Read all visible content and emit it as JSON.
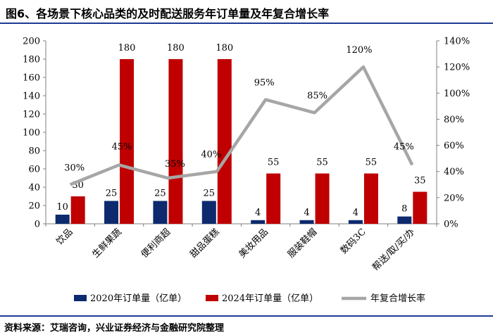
{
  "title": "图6、各场景下核心品类的及时配送服务年订单量及年复合增长率",
  "source": "资料来源：艾瑞咨询，兴业证券经济与金融研究院整理",
  "chart_data": {
    "type": "bar+line",
    "categories": [
      "饮品",
      "生鲜果蔬",
      "便利商超",
      "甜品蛋糕",
      "美妆用品",
      "服装鞋帽",
      "数码3C",
      "帮送/取/买/办"
    ],
    "series": [
      {
        "name": "2020年订单量（亿单）",
        "type": "bar",
        "axis": "left",
        "color": "#0d2a6e",
        "values": [
          10,
          25,
          25,
          25,
          4,
          4,
          4,
          8
        ]
      },
      {
        "name": "2024年订单量（亿单）",
        "type": "bar",
        "axis": "left",
        "color": "#c00000",
        "values": [
          30,
          180,
          180,
          180,
          55,
          55,
          55,
          35
        ]
      },
      {
        "name": "年复合增长率",
        "type": "line",
        "axis": "right",
        "color": "#a6a6a6",
        "values": [
          30,
          45,
          35,
          40,
          95,
          85,
          120,
          45
        ],
        "labels": [
          "30%",
          "45%",
          "35%",
          "40%",
          "95%",
          "85%",
          "120%",
          "45%"
        ]
      }
    ],
    "left_axis": {
      "min": 0,
      "max": 200,
      "ticks": [
        "0",
        "20",
        "40",
        "60",
        "80",
        "100",
        "120",
        "140",
        "160",
        "180",
        "200"
      ]
    },
    "right_axis": {
      "min": 0,
      "max": 140,
      "ticks": [
        "0%",
        "20%",
        "40%",
        "60%",
        "80%",
        "100%",
        "120%",
        "140%"
      ]
    },
    "legend_position": "bottom",
    "grid": false
  }
}
